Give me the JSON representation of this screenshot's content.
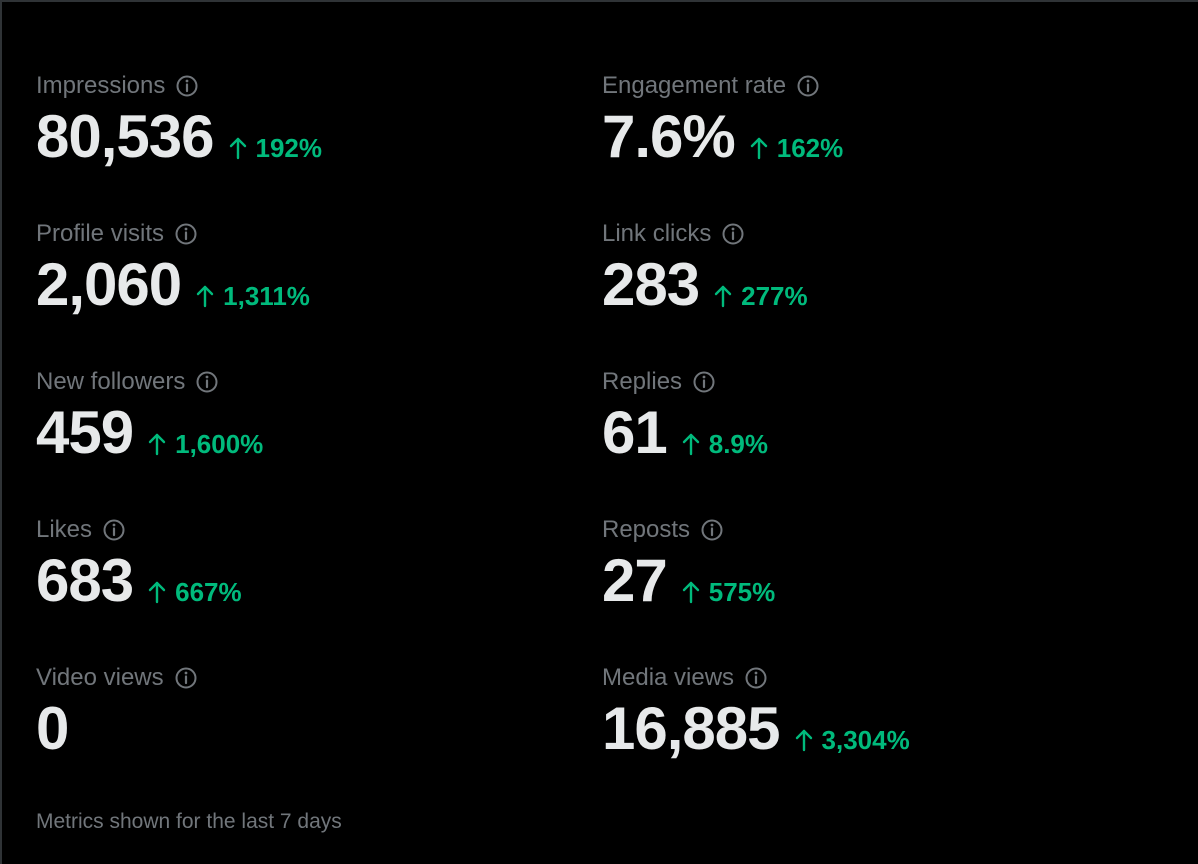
{
  "colors": {
    "background": "#000000",
    "label": "#71767b",
    "value": "#e7e9ea",
    "positive_change": "#00ba7c"
  },
  "icons": {
    "info": "info-circle-icon",
    "change_up": "arrow-up-icon"
  },
  "metrics": [
    {
      "label": "Impressions",
      "value": "80,536",
      "change": "192%"
    },
    {
      "label": "Engagement rate",
      "value": "7.6%",
      "change": "162%"
    },
    {
      "label": "Profile visits",
      "value": "2,060",
      "change": "1,311%"
    },
    {
      "label": "Link clicks",
      "value": "283",
      "change": "277%"
    },
    {
      "label": "New followers",
      "value": "459",
      "change": "1,600%"
    },
    {
      "label": "Replies",
      "value": "61",
      "change": "8.9%"
    },
    {
      "label": "Likes",
      "value": "683",
      "change": "667%"
    },
    {
      "label": "Reposts",
      "value": "27",
      "change": "575%"
    },
    {
      "label": "Video views",
      "value": "0",
      "change": ""
    },
    {
      "label": "Media views",
      "value": "16,885",
      "change": "3,304%"
    }
  ],
  "footer": {
    "note": "Metrics shown for the last 7 days"
  }
}
